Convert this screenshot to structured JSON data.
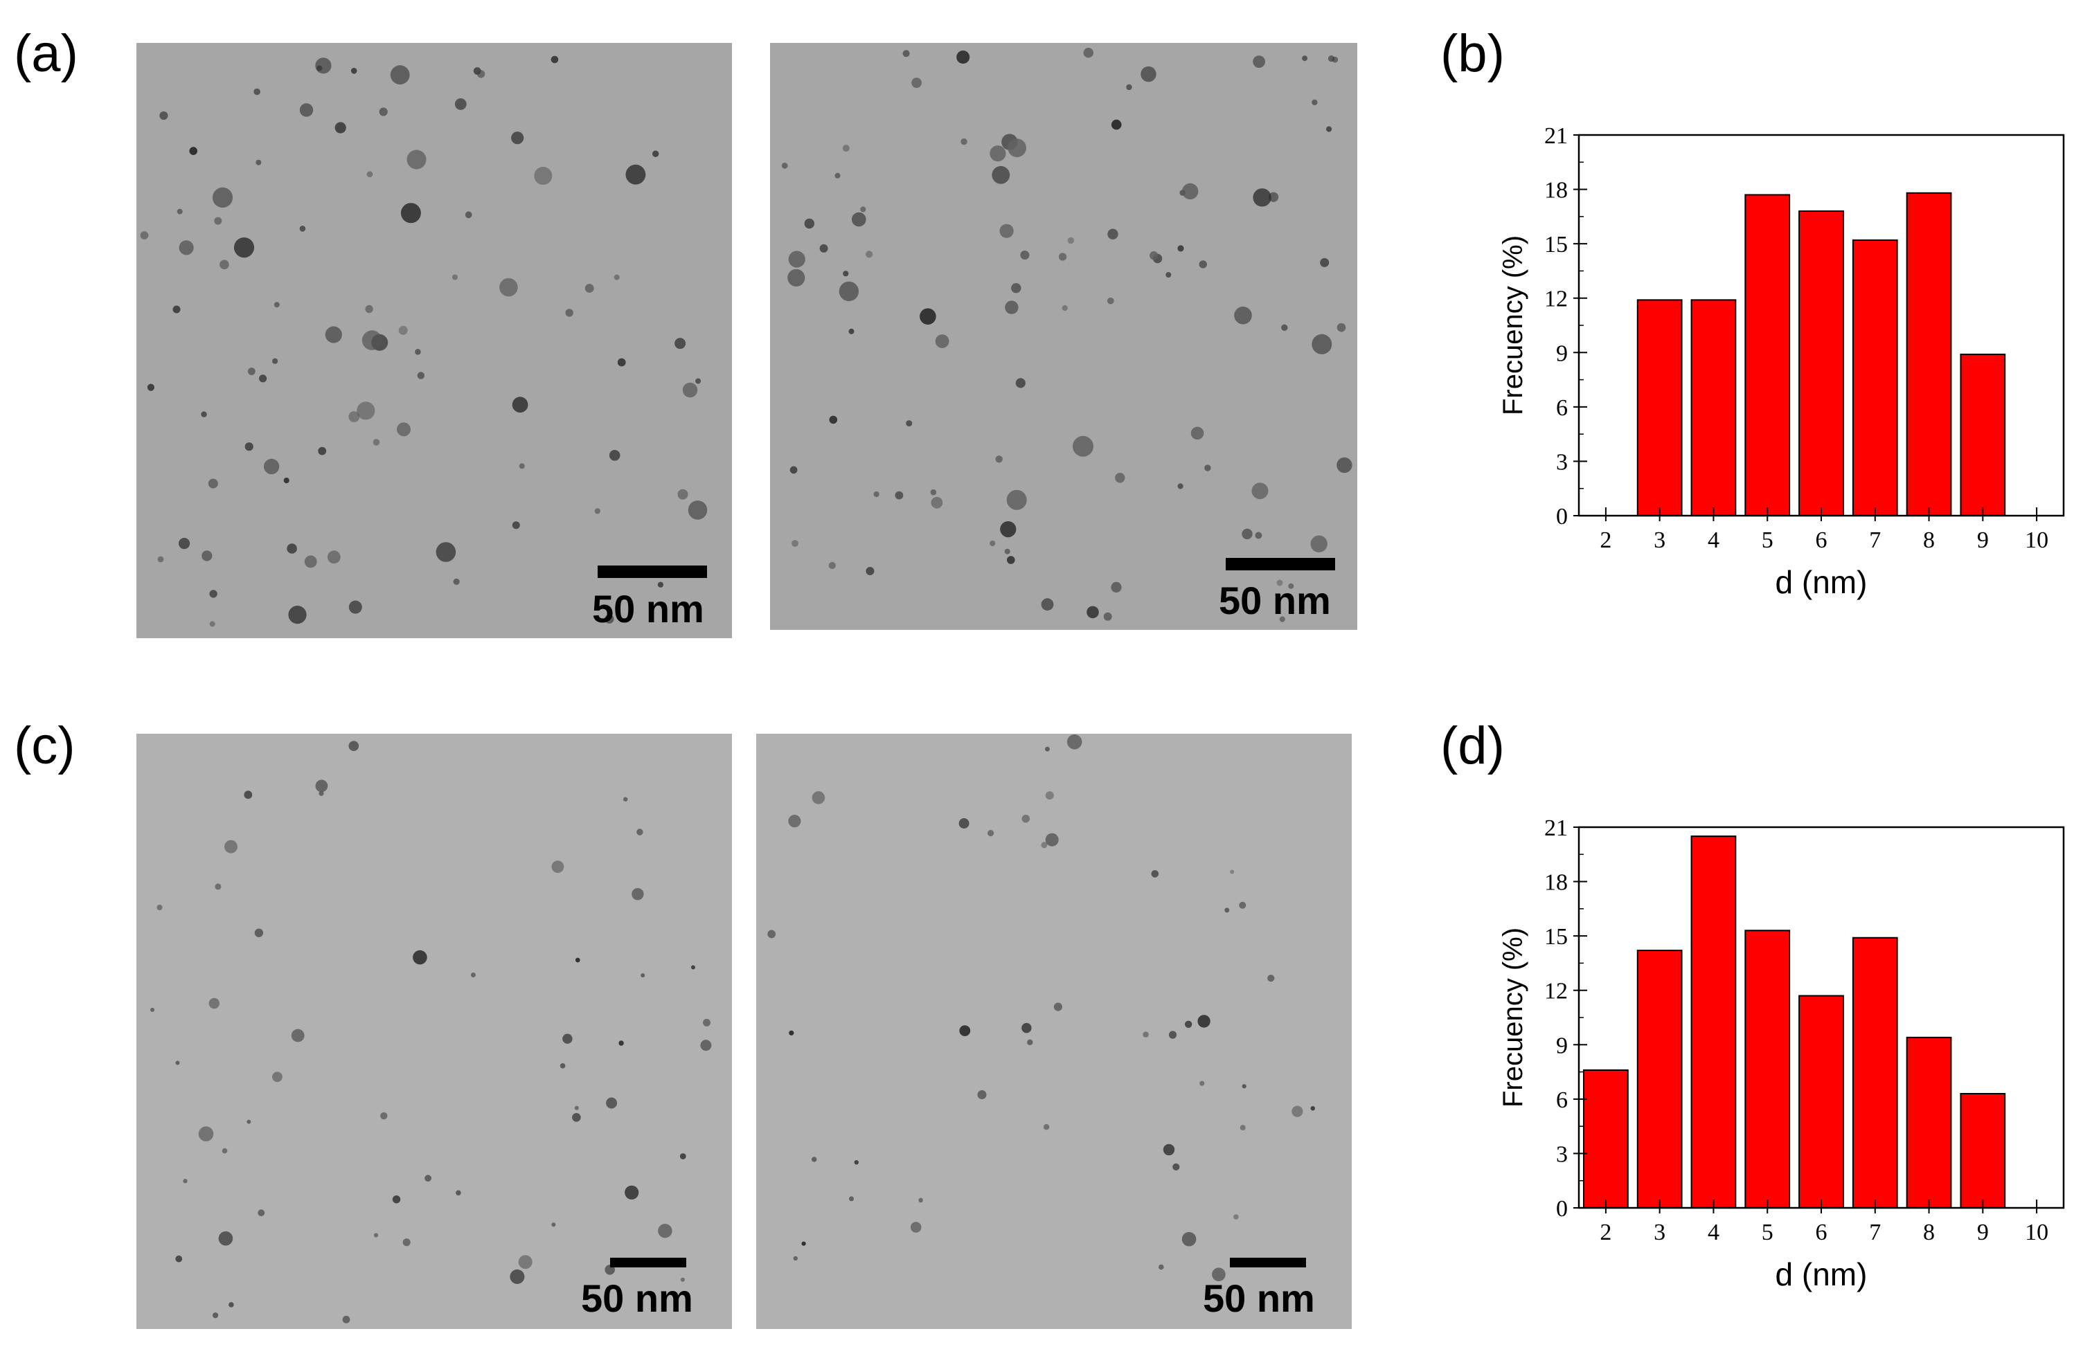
{
  "panels": {
    "a": {
      "label": "(a)",
      "scale_text_1": "50 nm",
      "scale_text_2": "50 nm"
    },
    "b": {
      "label": "(b)"
    },
    "c": {
      "label": "(c)",
      "scale_text_1": "50 nm",
      "scale_text_2": "50 nm"
    },
    "d": {
      "label": "(d)"
    }
  },
  "colors": {
    "bar_fill": "#ff0000",
    "bar_stroke": "#000000",
    "tem_background": "#a6a6a6",
    "particle": "#3a3a3a"
  },
  "chart_data": [
    {
      "panel": "b",
      "type": "bar",
      "xlabel": "d (nm)",
      "ylabel": "Frecuency (%)",
      "categories": [
        3,
        4,
        5,
        6,
        7,
        8,
        9
      ],
      "values": [
        11.9,
        11.9,
        17.7,
        16.8,
        15.2,
        17.8,
        8.9
      ],
      "xlim": [
        1.5,
        10.5
      ],
      "ylim": [
        0,
        21
      ],
      "xticks": [
        "2",
        "3",
        "4",
        "5",
        "6",
        "7",
        "8",
        "9",
        "10"
      ],
      "yticks": [
        "0",
        "3",
        "6",
        "9",
        "12",
        "15",
        "18",
        "21"
      ]
    },
    {
      "panel": "d",
      "type": "bar",
      "xlabel": "d (nm)",
      "ylabel": "Frecuency (%)",
      "categories": [
        2,
        3,
        4,
        5,
        6,
        7,
        8,
        9
      ],
      "values": [
        7.6,
        14.2,
        20.5,
        15.3,
        11.7,
        14.9,
        9.4,
        6.3
      ],
      "xlim": [
        1.5,
        10.5
      ],
      "ylim": [
        0,
        21
      ],
      "xticks": [
        "2",
        "3",
        "4",
        "5",
        "6",
        "7",
        "8",
        "9",
        "10"
      ],
      "yticks": [
        "0",
        "3",
        "6",
        "9",
        "12",
        "15",
        "18",
        "21"
      ]
    }
  ]
}
